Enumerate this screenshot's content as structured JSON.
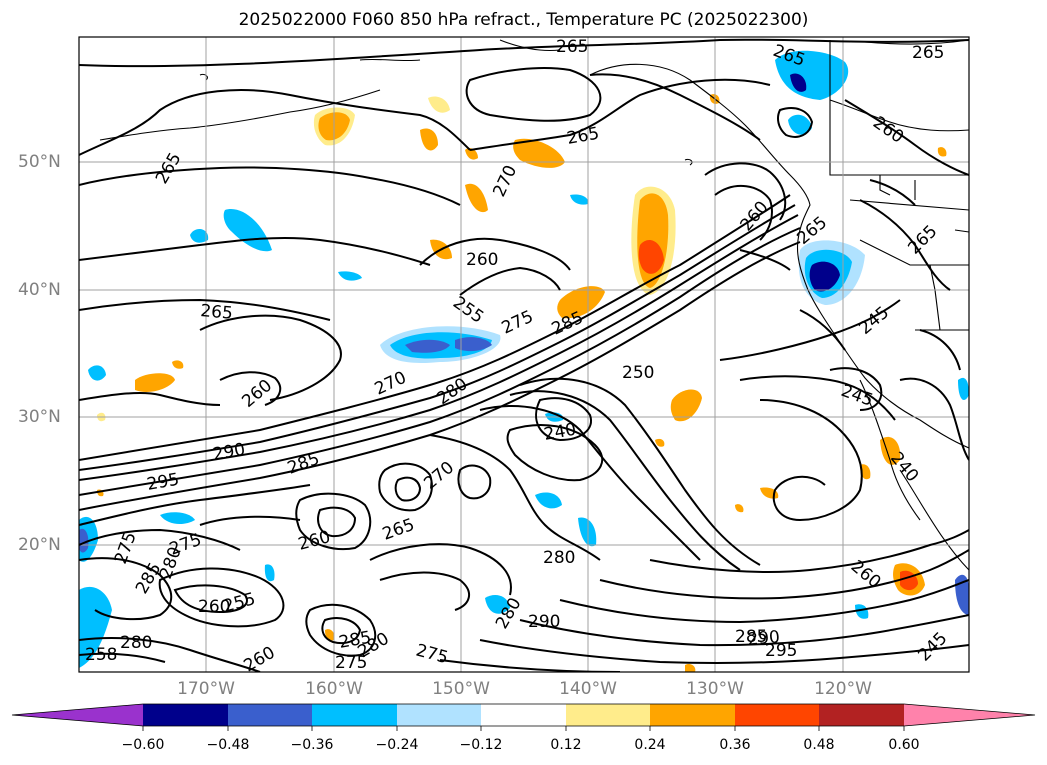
{
  "title": "2025022000 F060 850 hPa refract., Temperature PC (2025022300)",
  "lat_labels": [
    "50°N",
    "40°N",
    "30°N",
    "20°N"
  ],
  "lon_labels": [
    "170°W",
    "160°W",
    "150°W",
    "140°W",
    "130°W",
    "120°W"
  ],
  "colorbar": {
    "ticks": [
      "−0.60",
      "−0.48",
      "−0.36",
      "−0.24",
      "−0.12",
      "0.12",
      "0.24",
      "0.36",
      "0.48",
      "0.60"
    ],
    "colors": [
      "#9a32cd",
      "#00008b",
      "#3a5fcd",
      "#00bfff",
      "#b0e2ff",
      "#ffffff",
      "#ffec8b",
      "#ffa500",
      "#ff4500",
      "#b22222",
      "#ff82ab"
    ]
  },
  "contour_labels": [
    "265",
    "265",
    "265",
    "265",
    "260",
    "265",
    "265",
    "270",
    "260",
    "260",
    "255",
    "275",
    "285",
    "265",
    "265",
    "260",
    "270",
    "280",
    "250",
    "245",
    "245",
    "240",
    "240",
    "290",
    "285",
    "295",
    "270",
    "265",
    "260",
    "275",
    "275",
    "285",
    "280",
    "280",
    "260",
    "260",
    "255",
    "285",
    "280",
    "275",
    "275",
    "280",
    "290",
    "285",
    "290",
    "295",
    "280",
    "258",
    "260",
    "245"
  ],
  "chart_data": {
    "type": "heatmap",
    "map_extent": {
      "lon": [
        -180,
        -110
      ],
      "lat": [
        10,
        60
      ]
    },
    "gridlines": true,
    "colorbar_levels": [
      -0.6,
      -0.48,
      -0.36,
      -0.24,
      -0.12,
      0.12,
      0.24,
      0.36,
      0.48,
      0.6
    ],
    "colorbar_extend": "both"
  }
}
